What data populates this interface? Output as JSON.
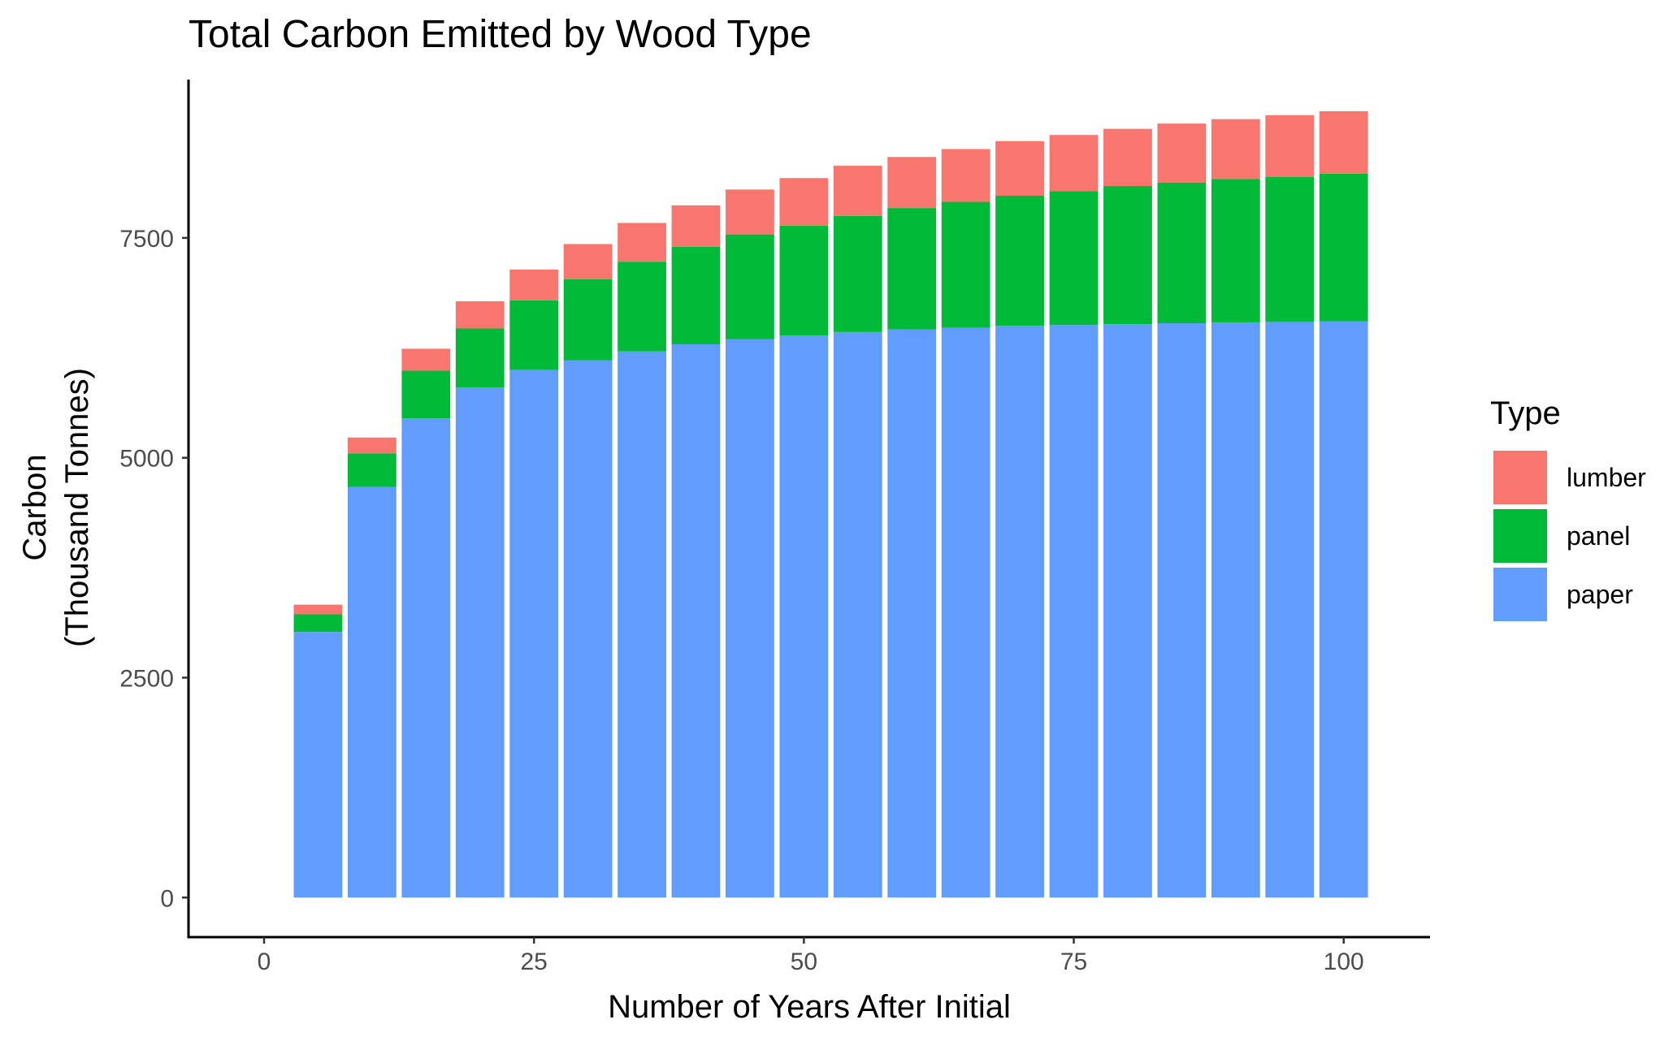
{
  "chart_data": {
    "type": "bar",
    "stacked": true,
    "title": "Total Carbon Emitted by Wood Type",
    "xlabel": "Number of Years After Initial",
    "ylabel": [
      "Carbon",
      "(Thousand Tonnes)"
    ],
    "xlim": [
      -7,
      108
    ],
    "ylim": [
      -450,
      9300
    ],
    "x_ticks": [
      0,
      25,
      50,
      75,
      100
    ],
    "y_ticks": [
      0,
      2500,
      5000,
      7500
    ],
    "x_tick_labels": [
      "0",
      "25",
      "50",
      "75",
      "100"
    ],
    "y_tick_labels": [
      "0",
      "2500",
      "5000",
      "7500"
    ],
    "bar_width": 4.5,
    "grid": false,
    "legend": {
      "title": "Type",
      "position": "right",
      "entries": [
        "lumber",
        "panel",
        "paper"
      ]
    },
    "colors": {
      "lumber": "#F8766D",
      "panel": "#00BA38",
      "paper": "#619CFF"
    },
    "x": [
      5,
      10,
      15,
      20,
      25,
      30,
      35,
      40,
      45,
      50,
      55,
      60,
      65,
      70,
      75,
      80,
      85,
      90,
      95,
      100
    ],
    "series": [
      {
        "name": "paper",
        "values": [
          3020,
          4670,
          5450,
          5800,
          6000,
          6110,
          6210,
          6290,
          6350,
          6390,
          6430,
          6460,
          6480,
          6500,
          6510,
          6520,
          6530,
          6540,
          6545,
          6550
        ]
      },
      {
        "name": "panel",
        "values": [
          200,
          380,
          540,
          670,
          790,
          920,
          1020,
          1110,
          1190,
          1250,
          1320,
          1380,
          1430,
          1480,
          1520,
          1570,
          1600,
          1630,
          1650,
          1680
        ]
      },
      {
        "name": "lumber",
        "values": [
          110,
          180,
          250,
          310,
          350,
          400,
          440,
          470,
          510,
          540,
          570,
          580,
          600,
          620,
          640,
          650,
          670,
          680,
          700,
          710
        ]
      }
    ]
  }
}
